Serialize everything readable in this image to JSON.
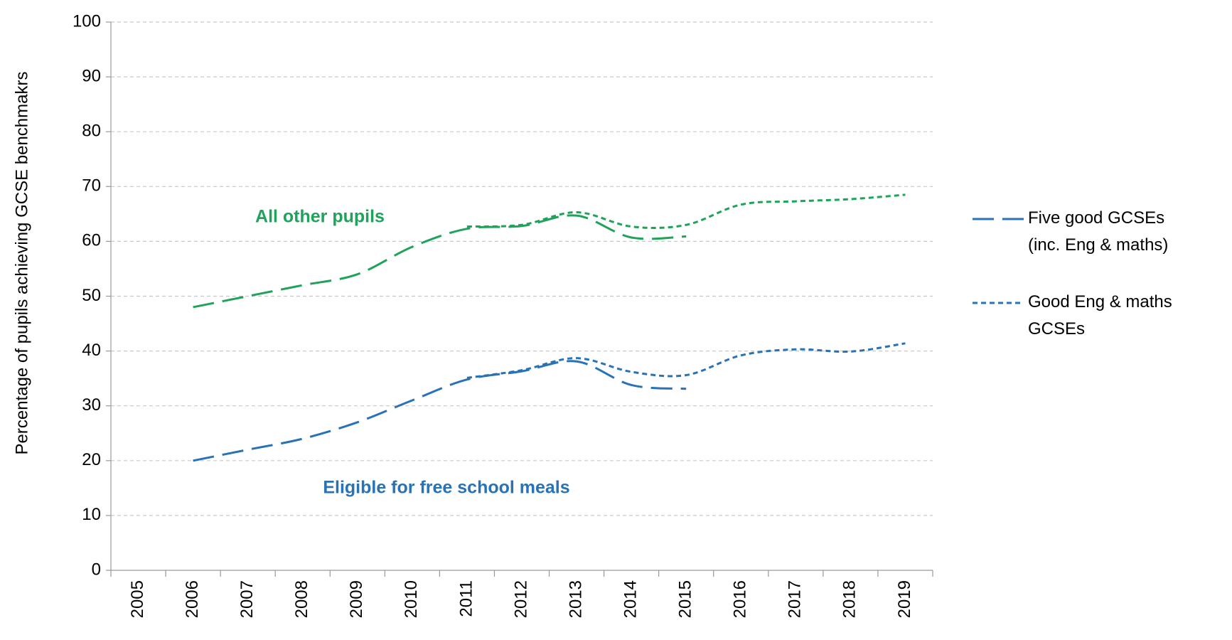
{
  "chart_data": {
    "type": "line",
    "y_label": "Percentage of pupils achieving GCSE benchmakrs",
    "categories": [
      "2005",
      "2006",
      "2007",
      "2008",
      "2009",
      "2010",
      "2011",
      "2012",
      "2013",
      "2014",
      "2015",
      "2016",
      "2017",
      "2018",
      "2019"
    ],
    "ylim": [
      0,
      100
    ],
    "yticks": [
      0,
      10,
      20,
      30,
      40,
      50,
      60,
      70,
      80,
      90,
      100
    ],
    "grid": true,
    "legend_color": "#2872b5",
    "annotations": [
      {
        "text": "All other pupils",
        "color": "#1fa35a"
      },
      {
        "text": "Eligible for free school meals",
        "color": "#2872b5"
      }
    ],
    "series": [
      {
        "name": "Five good GCSEs (inc. Eng & maths)",
        "dash": "long",
        "lines": [
          {
            "color": "#1fa35a",
            "values": [
              null,
              48,
              50,
              52,
              54,
              59,
              62.3,
              62.8,
              64.7,
              60.7,
              60.9,
              null,
              null,
              null,
              null
            ]
          },
          {
            "color": "#2872b5",
            "values": [
              null,
              20,
              22,
              24,
              27,
              31,
              34.8,
              36.3,
              38.1,
              33.8,
              33.1,
              null,
              null,
              null,
              null
            ]
          }
        ]
      },
      {
        "name": "Good Eng & maths GCSEs",
        "dash": "short",
        "lines": [
          {
            "color": "#1fa35a",
            "values": [
              null,
              null,
              null,
              null,
              null,
              null,
              62.7,
              63,
              65.3,
              62.7,
              63,
              66.7,
              67.3,
              67.7,
              68.5
            ]
          },
          {
            "color": "#2872b5",
            "values": [
              null,
              null,
              null,
              null,
              null,
              null,
              35.1,
              36.5,
              38.7,
              36.2,
              35.6,
              39.2,
              40.3,
              39.9,
              41.4
            ]
          }
        ]
      }
    ]
  }
}
